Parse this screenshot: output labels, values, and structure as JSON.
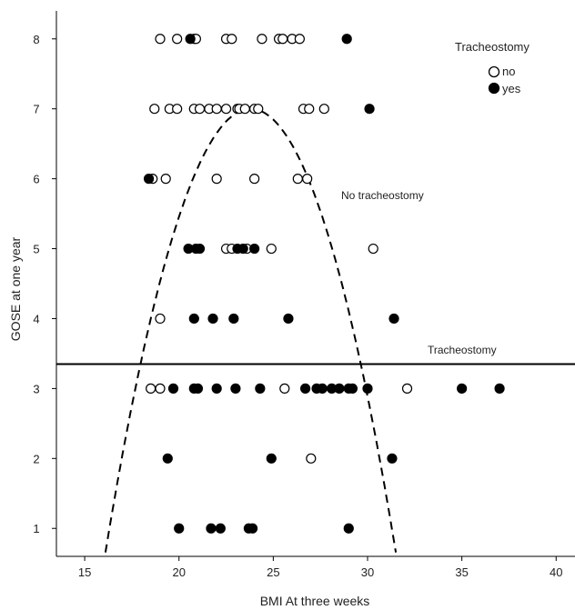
{
  "chart_data": {
    "type": "scatter",
    "xlabel": "BMI  At three weeks",
    "ylabel": "GOSE at one year",
    "xlim": [
      13.5,
      41
    ],
    "ylim": [
      0.6,
      8.4
    ],
    "x_ticks": [
      15,
      20,
      25,
      30,
      35,
      40
    ],
    "y_ticks": [
      1,
      2,
      3,
      4,
      5,
      6,
      7,
      8
    ],
    "grid": false,
    "legend": {
      "title": "Tracheostomy",
      "placement": "top-right",
      "entries": [
        {
          "label": "no",
          "marker": "open-circle"
        },
        {
          "label": "yes",
          "marker": "filled-circle"
        }
      ]
    },
    "series": [
      {
        "name": "no",
        "marker": "open-circle",
        "points": [
          [
            19.0,
            8
          ],
          [
            19.9,
            8
          ],
          [
            20.8,
            8
          ],
          [
            20.9,
            8
          ],
          [
            22.5,
            8
          ],
          [
            22.8,
            8
          ],
          [
            24.4,
            8
          ],
          [
            25.3,
            8
          ],
          [
            25.5,
            8
          ],
          [
            26.0,
            8
          ],
          [
            26.4,
            8
          ],
          [
            18.7,
            7
          ],
          [
            19.5,
            7
          ],
          [
            19.9,
            7
          ],
          [
            20.8,
            7
          ],
          [
            21.1,
            7
          ],
          [
            21.6,
            7
          ],
          [
            22.0,
            7
          ],
          [
            22.5,
            7
          ],
          [
            23.1,
            7
          ],
          [
            23.2,
            7
          ],
          [
            23.5,
            7
          ],
          [
            24.0,
            7
          ],
          [
            24.2,
            7
          ],
          [
            26.6,
            7
          ],
          [
            26.9,
            7
          ],
          [
            27.7,
            7
          ],
          [
            18.6,
            6
          ],
          [
            19.3,
            6
          ],
          [
            22.0,
            6
          ],
          [
            24.0,
            6
          ],
          [
            26.3,
            6
          ],
          [
            26.8,
            6
          ],
          [
            22.5,
            5
          ],
          [
            22.8,
            5
          ],
          [
            23.6,
            5
          ],
          [
            24.9,
            5
          ],
          [
            30.3,
            5
          ],
          [
            19.0,
            4
          ],
          [
            18.5,
            3
          ],
          [
            19.0,
            3
          ],
          [
            25.6,
            3
          ],
          [
            32.1,
            3
          ],
          [
            27.0,
            2
          ]
        ]
      },
      {
        "name": "yes",
        "marker": "filled-circle",
        "points": [
          [
            20.6,
            8
          ],
          [
            28.9,
            8
          ],
          [
            30.1,
            7
          ],
          [
            18.4,
            6
          ],
          [
            20.5,
            5
          ],
          [
            20.9,
            5
          ],
          [
            21.1,
            5
          ],
          [
            23.1,
            5
          ],
          [
            23.4,
            5
          ],
          [
            24.0,
            5
          ],
          [
            20.8,
            4
          ],
          [
            21.8,
            4
          ],
          [
            22.9,
            4
          ],
          [
            25.8,
            4
          ],
          [
            31.4,
            4
          ],
          [
            19.7,
            3
          ],
          [
            20.8,
            3
          ],
          [
            21.0,
            3
          ],
          [
            22.0,
            3
          ],
          [
            23.0,
            3
          ],
          [
            24.3,
            3
          ],
          [
            26.7,
            3
          ],
          [
            27.3,
            3
          ],
          [
            27.6,
            3
          ],
          [
            28.1,
            3
          ],
          [
            28.5,
            3
          ],
          [
            29.0,
            3
          ],
          [
            29.2,
            3
          ],
          [
            30.0,
            3
          ],
          [
            35.0,
            3
          ],
          [
            37.0,
            3
          ],
          [
            19.4,
            2
          ],
          [
            24.9,
            2
          ],
          [
            31.3,
            2
          ],
          [
            20.0,
            1
          ],
          [
            21.7,
            1
          ],
          [
            22.2,
            1
          ],
          [
            23.7,
            1
          ],
          [
            23.9,
            1
          ],
          [
            29.0,
            1
          ]
        ]
      }
    ],
    "fit_lines": [
      {
        "name": "No tracheostomy",
        "style": "dashed",
        "kind": "quadratic",
        "vertex": [
          23.8,
          7.0
        ],
        "coef": -0.107,
        "x_range": [
          13.5,
          35
        ]
      },
      {
        "name": "Tracheostomy",
        "style": "solid",
        "kind": "horizontal",
        "y": 3.35,
        "x_range": [
          13.5,
          41
        ]
      }
    ]
  }
}
